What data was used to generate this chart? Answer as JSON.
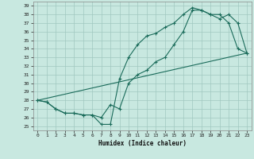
{
  "xlabel": "Humidex (Indice chaleur)",
  "bg_color": "#c8e8e0",
  "grid_color": "#a0c8c0",
  "line_color": "#1a6b5a",
  "xlim": [
    -0.5,
    23.5
  ],
  "ylim": [
    24.5,
    39.5
  ],
  "xticks": [
    0,
    1,
    2,
    3,
    4,
    5,
    6,
    7,
    8,
    9,
    10,
    11,
    12,
    13,
    14,
    15,
    16,
    17,
    18,
    19,
    20,
    21,
    22,
    23
  ],
  "yticks": [
    25,
    26,
    27,
    28,
    29,
    30,
    31,
    32,
    33,
    34,
    35,
    36,
    37,
    38,
    39
  ],
  "line1_x": [
    0,
    1,
    2,
    3,
    4,
    5,
    6,
    7,
    8,
    9,
    10,
    11,
    12,
    13,
    14,
    15,
    16,
    17,
    18,
    19,
    20,
    21,
    22,
    23
  ],
  "line1_y": [
    28.0,
    27.8,
    27.0,
    26.5,
    26.5,
    26.3,
    26.3,
    25.2,
    25.2,
    30.5,
    33.0,
    34.5,
    35.5,
    35.8,
    36.5,
    37.0,
    38.0,
    38.8,
    38.5,
    38.0,
    38.0,
    37.0,
    34.0,
    33.5
  ],
  "line2_x": [
    0,
    1,
    2,
    3,
    4,
    5,
    6,
    7,
    8,
    9,
    10,
    11,
    12,
    13,
    14,
    15,
    16,
    17,
    18,
    19,
    20,
    21,
    22,
    23
  ],
  "line2_y": [
    28.0,
    27.8,
    27.0,
    26.5,
    26.5,
    26.3,
    26.3,
    26.0,
    27.5,
    27.0,
    30.0,
    31.0,
    31.5,
    32.5,
    33.0,
    34.5,
    36.0,
    38.5,
    38.5,
    38.0,
    37.5,
    38.0,
    37.0,
    33.5
  ],
  "line3_x": [
    0,
    23
  ],
  "line3_y": [
    28.0,
    33.5
  ]
}
